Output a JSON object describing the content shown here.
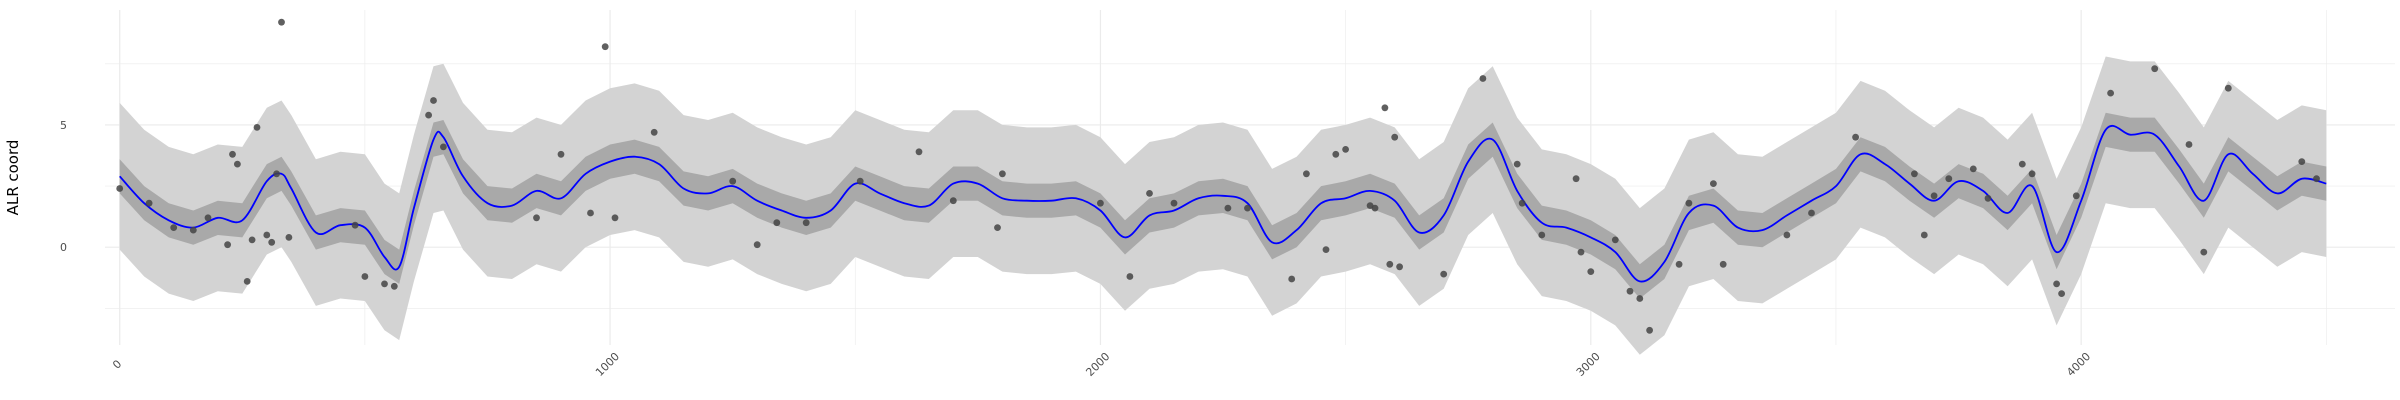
{
  "chart_data": {
    "type": "line",
    "ylabel": "ALR coord",
    "xlabel": "",
    "title": "",
    "grid": true,
    "xlim": [
      -30,
      4640
    ],
    "ylim": [
      -4.0,
      9.7
    ],
    "x_ticks": [
      0,
      1000,
      2000,
      3000,
      4000
    ],
    "x_tick_labels": [
      "0",
      "1000",
      "2000",
      "3000",
      "4000"
    ],
    "y_ticks": [
      0,
      5
    ],
    "y_tick_labels": [
      "0",
      "5"
    ],
    "colors": {
      "mean_line": "#0000ff",
      "inner_band": "#a9a9a9",
      "outer_band": "#d3d3d3",
      "points": "#444444",
      "grid": "#ebebeb"
    },
    "x": [
      0,
      50,
      100,
      150,
      200,
      250,
      300,
      330,
      350,
      400,
      450,
      500,
      540,
      570,
      600,
      640,
      660,
      700,
      750,
      800,
      850,
      900,
      950,
      1000,
      1050,
      1100,
      1150,
      1200,
      1250,
      1300,
      1350,
      1400,
      1450,
      1500,
      1550,
      1600,
      1650,
      1700,
      1750,
      1800,
      1850,
      1900,
      1950,
      2000,
      2050,
      2100,
      2150,
      2200,
      2250,
      2300,
      2350,
      2400,
      2450,
      2500,
      2550,
      2600,
      2650,
      2700,
      2750,
      2800,
      2850,
      2900,
      2950,
      3000,
      3050,
      3100,
      3150,
      3200,
      3250,
      3300,
      3350,
      3400,
      3450,
      3500,
      3550,
      3600,
      3650,
      3700,
      3750,
      3800,
      3850,
      3900,
      3950,
      4000,
      4050,
      4100,
      4150,
      4200,
      4250,
      4300,
      4350,
      4400,
      4450,
      4500
    ],
    "series": [
      {
        "role": "mean",
        "values": [
          2.9,
          1.8,
          1.1,
          0.8,
          1.2,
          1.1,
          2.7,
          3.0,
          2.4,
          0.6,
          0.9,
          0.8,
          -0.4,
          -0.8,
          1.6,
          4.4,
          4.5,
          2.9,
          1.8,
          1.7,
          2.3,
          2.0,
          3.0,
          3.5,
          3.7,
          3.4,
          2.4,
          2.2,
          2.5,
          1.9,
          1.5,
          1.2,
          1.5,
          2.6,
          2.2,
          1.8,
          1.7,
          2.6,
          2.6,
          2.0,
          1.9,
          1.9,
          2.0,
          1.5,
          0.4,
          1.3,
          1.5,
          2.0,
          2.1,
          1.8,
          0.2,
          0.7,
          1.8,
          2.0,
          2.3,
          1.9,
          0.6,
          1.3,
          3.5,
          4.4,
          2.3,
          1.0,
          0.8,
          0.4,
          -0.2,
          -1.4,
          -0.6,
          1.4,
          1.7,
          0.8,
          0.7,
          1.3,
          1.9,
          2.5,
          3.8,
          3.4,
          2.6,
          1.9,
          2.7,
          2.3,
          1.4,
          2.5,
          -0.2,
          1.9,
          4.8,
          4.6,
          4.6,
          3.3,
          1.9,
          3.8,
          3.0,
          2.2,
          2.8,
          2.6
        ]
      },
      {
        "role": "inner_band_lower",
        "values": [
          2.2,
          1.1,
          0.4,
          0.1,
          0.5,
          0.4,
          2.0,
          2.3,
          1.7,
          -0.1,
          0.2,
          0.1,
          -1.1,
          -1.5,
          0.9,
          3.7,
          3.8,
          2.2,
          1.1,
          1.0,
          1.6,
          1.3,
          2.3,
          2.8,
          3.0,
          2.7,
          1.7,
          1.5,
          1.8,
          1.2,
          0.8,
          0.5,
          0.8,
          1.9,
          1.5,
          1.1,
          1.0,
          1.9,
          1.9,
          1.3,
          1.2,
          1.2,
          1.3,
          0.8,
          -0.3,
          0.6,
          0.8,
          1.3,
          1.4,
          1.1,
          -0.5,
          0.0,
          1.1,
          1.3,
          1.6,
          1.2,
          -0.1,
          0.6,
          2.8,
          3.7,
          1.6,
          0.3,
          0.1,
          -0.3,
          -0.9,
          -2.1,
          -1.3,
          0.7,
          1.0,
          0.1,
          0.0,
          0.6,
          1.2,
          1.8,
          3.1,
          2.7,
          1.9,
          1.2,
          2.0,
          1.6,
          0.7,
          1.8,
          -0.9,
          1.2,
          4.1,
          3.9,
          3.9,
          2.6,
          1.2,
          3.1,
          2.3,
          1.5,
          2.1,
          1.9
        ]
      },
      {
        "role": "inner_band_upper",
        "values": [
          3.6,
          2.5,
          1.8,
          1.5,
          1.9,
          1.8,
          3.4,
          3.7,
          3.1,
          1.3,
          1.6,
          1.5,
          0.3,
          -0.1,
          2.3,
          5.1,
          5.2,
          3.6,
          2.5,
          2.4,
          3.0,
          2.7,
          3.7,
          4.2,
          4.4,
          4.1,
          3.1,
          2.9,
          3.2,
          2.6,
          2.2,
          1.9,
          2.2,
          3.3,
          2.9,
          2.5,
          2.4,
          3.3,
          3.3,
          2.7,
          2.6,
          2.6,
          2.7,
          2.2,
          1.1,
          2.0,
          2.2,
          2.7,
          2.8,
          2.5,
          0.9,
          1.4,
          2.5,
          2.7,
          3.0,
          2.6,
          1.3,
          2.0,
          4.2,
          5.1,
          3.0,
          1.7,
          1.5,
          1.1,
          0.5,
          -0.7,
          0.1,
          2.1,
          2.4,
          1.5,
          1.4,
          2.0,
          2.6,
          3.2,
          4.5,
          4.1,
          3.3,
          2.6,
          3.4,
          3.0,
          2.1,
          3.2,
          0.5,
          2.6,
          5.5,
          5.3,
          5.3,
          4.0,
          2.6,
          4.5,
          3.7,
          2.9,
          3.5,
          3.3
        ]
      },
      {
        "role": "outer_band_lower",
        "values": [
          -0.1,
          -1.2,
          -1.9,
          -2.2,
          -1.8,
          -1.9,
          -0.3,
          0.0,
          -0.6,
          -2.4,
          -2.1,
          -2.2,
          -3.4,
          -3.8,
          -1.4,
          1.4,
          1.5,
          -0.1,
          -1.2,
          -1.3,
          -0.7,
          -1.0,
          0.0,
          0.5,
          0.7,
          0.4,
          -0.6,
          -0.8,
          -0.5,
          -1.1,
          -1.5,
          -1.8,
          -1.5,
          -0.4,
          -0.8,
          -1.2,
          -1.3,
          -0.4,
          -0.4,
          -1.0,
          -1.1,
          -1.1,
          -1.0,
          -1.5,
          -2.6,
          -1.7,
          -1.5,
          -1.0,
          -0.9,
          -1.2,
          -2.8,
          -2.3,
          -1.2,
          -1.0,
          -0.7,
          -1.1,
          -2.4,
          -1.7,
          0.5,
          1.4,
          -0.7,
          -2.0,
          -2.2,
          -2.6,
          -3.2,
          -4.4,
          -3.6,
          -1.6,
          -1.3,
          -2.2,
          -2.3,
          -1.7,
          -1.1,
          -0.5,
          0.8,
          0.4,
          -0.4,
          -1.1,
          -0.3,
          -0.7,
          -1.6,
          -0.5,
          -3.2,
          -1.1,
          1.8,
          1.6,
          1.6,
          0.3,
          -1.1,
          0.8,
          0.0,
          -0.8,
          -0.2,
          -0.4
        ]
      },
      {
        "role": "outer_band_upper",
        "values": [
          5.9,
          4.8,
          4.1,
          3.8,
          4.2,
          4.1,
          5.7,
          6.0,
          5.4,
          3.6,
          3.9,
          3.8,
          2.6,
          2.2,
          4.6,
          7.4,
          7.5,
          5.9,
          4.8,
          4.7,
          5.3,
          5.0,
          6.0,
          6.5,
          6.7,
          6.4,
          5.4,
          5.2,
          5.5,
          4.9,
          4.5,
          4.2,
          4.5,
          5.6,
          5.2,
          4.8,
          4.7,
          5.6,
          5.6,
          5.0,
          4.9,
          4.9,
          5.0,
          4.5,
          3.4,
          4.3,
          4.5,
          5.0,
          5.1,
          4.8,
          3.2,
          3.7,
          4.8,
          5.0,
          5.3,
          4.9,
          3.6,
          4.3,
          6.5,
          7.4,
          5.3,
          4.0,
          3.8,
          3.4,
          2.8,
          1.6,
          2.4,
          4.4,
          4.7,
          3.8,
          3.7,
          4.3,
          4.9,
          5.5,
          6.8,
          6.4,
          5.6,
          4.9,
          5.7,
          5.3,
          4.4,
          5.5,
          2.8,
          4.9,
          7.8,
          7.6,
          7.6,
          6.3,
          4.9,
          6.8,
          6.0,
          5.2,
          5.8,
          5.6
        ]
      },
      {
        "role": "observations",
        "points": [
          [
            0,
            2.4
          ],
          [
            60,
            1.8
          ],
          [
            110,
            0.8
          ],
          [
            150,
            0.7
          ],
          [
            180,
            1.2
          ],
          [
            220,
            0.1
          ],
          [
            230,
            3.8
          ],
          [
            240,
            3.4
          ],
          [
            260,
            -1.4
          ],
          [
            270,
            0.3
          ],
          [
            280,
            4.9
          ],
          [
            300,
            0.5
          ],
          [
            310,
            0.2
          ],
          [
            320,
            3.0
          ],
          [
            330,
            9.2
          ],
          [
            345,
            0.4
          ],
          [
            480,
            0.9
          ],
          [
            500,
            -1.2
          ],
          [
            540,
            -1.5
          ],
          [
            560,
            -1.6
          ],
          [
            630,
            5.4
          ],
          [
            640,
            6.0
          ],
          [
            660,
            4.1
          ],
          [
            850,
            1.2
          ],
          [
            900,
            3.8
          ],
          [
            960,
            1.4
          ],
          [
            990,
            8.2
          ],
          [
            1010,
            1.2
          ],
          [
            1090,
            4.7
          ],
          [
            1250,
            2.7
          ],
          [
            1300,
            0.1
          ],
          [
            1340,
            1.0
          ],
          [
            1400,
            1.0
          ],
          [
            1510,
            2.7
          ],
          [
            1630,
            3.9
          ],
          [
            1700,
            1.9
          ],
          [
            1790,
            0.8
          ],
          [
            1800,
            3.0
          ],
          [
            2000,
            1.8
          ],
          [
            2060,
            -1.2
          ],
          [
            2100,
            2.2
          ],
          [
            2150,
            1.8
          ],
          [
            2260,
            1.6
          ],
          [
            2300,
            1.6
          ],
          [
            2390,
            -1.3
          ],
          [
            2420,
            3.0
          ],
          [
            2460,
            -0.1
          ],
          [
            2480,
            3.8
          ],
          [
            2500,
            4.0
          ],
          [
            2550,
            1.7
          ],
          [
            2560,
            1.6
          ],
          [
            2580,
            5.7
          ],
          [
            2600,
            4.5
          ],
          [
            2590,
            -0.7
          ],
          [
            2610,
            -0.8
          ],
          [
            2700,
            -1.1
          ],
          [
            2780,
            6.9
          ],
          [
            2850,
            3.4
          ],
          [
            2860,
            1.8
          ],
          [
            2900,
            0.5
          ],
          [
            2970,
            2.8
          ],
          [
            2980,
            -0.2
          ],
          [
            3000,
            -1.0
          ],
          [
            3050,
            0.3
          ],
          [
            3080,
            -1.8
          ],
          [
            3100,
            -2.1
          ],
          [
            3120,
            -3.4
          ],
          [
            3180,
            -0.7
          ],
          [
            3200,
            1.8
          ],
          [
            3250,
            2.6
          ],
          [
            3270,
            -0.7
          ],
          [
            3400,
            0.5
          ],
          [
            3450,
            1.4
          ],
          [
            3540,
            4.5
          ],
          [
            3660,
            3.0
          ],
          [
            3680,
            0.5
          ],
          [
            3700,
            2.1
          ],
          [
            3730,
            2.8
          ],
          [
            3780,
            3.2
          ],
          [
            3810,
            2.0
          ],
          [
            3880,
            3.4
          ],
          [
            3900,
            3.0
          ],
          [
            3950,
            -1.5
          ],
          [
            3960,
            -1.9
          ],
          [
            3990,
            2.1
          ],
          [
            4060,
            6.3
          ],
          [
            4150,
            7.3
          ],
          [
            4220,
            4.2
          ],
          [
            4250,
            -0.2
          ],
          [
            4300,
            6.5
          ],
          [
            4450,
            3.5
          ],
          [
            4480,
            2.8
          ]
        ]
      }
    ]
  }
}
